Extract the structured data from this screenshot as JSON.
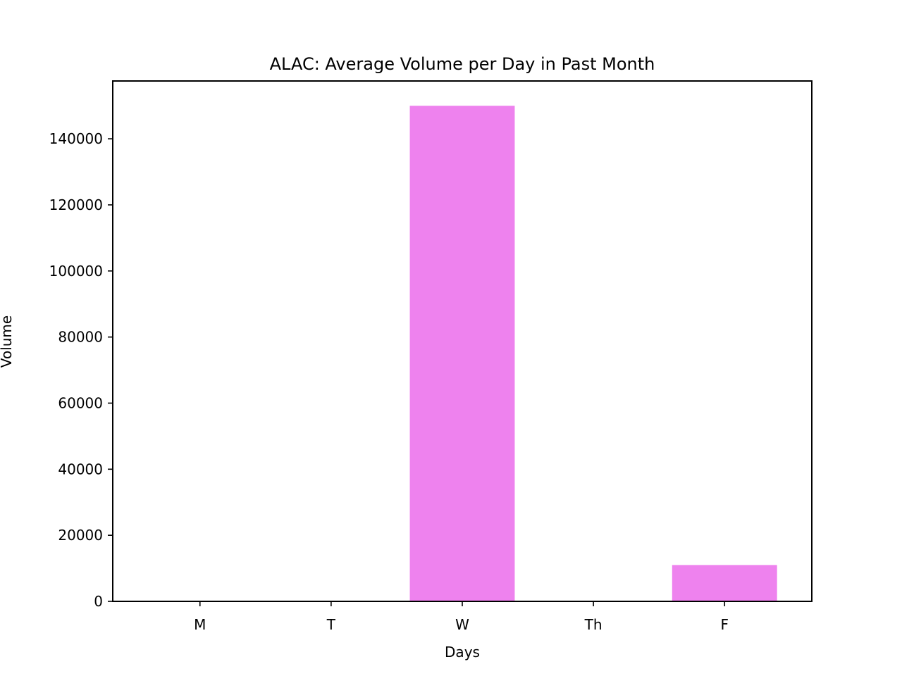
{
  "chart_data": {
    "type": "bar",
    "title": "ALAC: Average Volume per Day in Past Month",
    "xlabel": "Days",
    "ylabel": "Volume",
    "categories": [
      "M",
      "T",
      "W",
      "Th",
      "F"
    ],
    "values": [
      0,
      0,
      150000,
      0,
      11000
    ],
    "ylim": [
      0,
      157500
    ],
    "yticks": [
      0,
      20000,
      40000,
      60000,
      80000,
      100000,
      120000,
      140000
    ],
    "ytick_labels": [
      "0",
      "20000",
      "40000",
      "60000",
      "80000",
      "100000",
      "120000",
      "140000"
    ],
    "grid": false,
    "legend": "none",
    "colors": {
      "bar": "#ee82ee",
      "axes": "#000000"
    }
  }
}
